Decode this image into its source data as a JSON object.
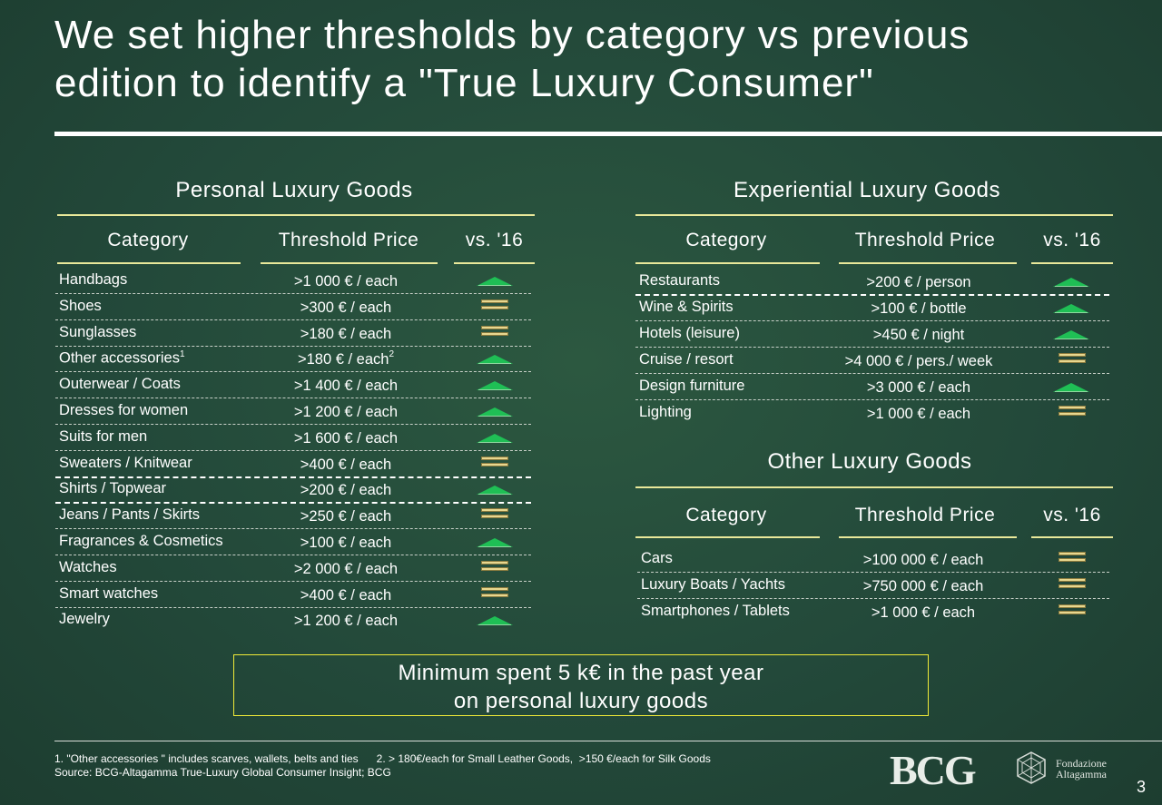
{
  "title": {
    "line1": "We set higher thresholds by category vs previous",
    "line2": "edition to identify a \"True Luxury Consumer\""
  },
  "headers": {
    "category": "Category",
    "threshold": "Threshold Price",
    "vs": "vs. '16"
  },
  "personal": {
    "title": "Personal Luxury Goods",
    "rows": [
      {
        "category": "Handbags",
        "price": ">1 000 € / each",
        "trend": "up"
      },
      {
        "category": "Shoes",
        "price": ">300 € / each",
        "trend": "same"
      },
      {
        "category": "Sunglasses",
        "price": ">180 € / each",
        "trend": "same"
      },
      {
        "category": "Other accessories",
        "sup": "1",
        "price": ">180 € / each",
        "price_sup": "2",
        "trend": "up"
      },
      {
        "category": "Outerwear / Coats",
        "price": ">1 400 € / each",
        "trend": "up"
      },
      {
        "category": "Dresses for women",
        "price": ">1 200 € / each",
        "trend": "up"
      },
      {
        "category": "Suits for men",
        "price": ">1 600 € / each",
        "trend": "up"
      },
      {
        "category": "Sweaters / Knitwear",
        "price": ">400 € / each",
        "trend": "same"
      },
      {
        "category": "Shirts / Topwear",
        "price": ">200 € / each",
        "trend": "up"
      },
      {
        "category": "Jeans / Pants / Skirts",
        "price": ">250 € / each",
        "trend": "same"
      },
      {
        "category": "Fragrances & Cosmetics",
        "price": ">100 € / each",
        "trend": "up"
      },
      {
        "category": "Watches",
        "price": ">2 000 € / each",
        "trend": "same"
      },
      {
        "category": "Smart watches",
        "price": ">400 € / each",
        "trend": "same"
      },
      {
        "category": "Jewelry",
        "price": ">1 200 € / each",
        "trend": "up"
      }
    ]
  },
  "experiential": {
    "title": "Experiential Luxury Goods",
    "rows": [
      {
        "category": "Restaurants",
        "price": ">200 € / person",
        "trend": "up"
      },
      {
        "category": "Wine & Spirits",
        "price": ">100 € / bottle",
        "trend": "up"
      },
      {
        "category": "Hotels (leisure)",
        "price": ">450 € / night",
        "trend": "up"
      },
      {
        "category": "Cruise / resort",
        "price": ">4 000 € / pers./ week",
        "trend": "same"
      },
      {
        "category": "Design furniture",
        "price": ">3 000 € / each",
        "trend": "up"
      },
      {
        "category": "Lighting",
        "price": ">1 000 € / each",
        "trend": "same"
      }
    ]
  },
  "other": {
    "title": "Other Luxury Goods",
    "rows": [
      {
        "category": "Cars",
        "price": ">100 000 € / each",
        "trend": "same"
      },
      {
        "category": "Luxury Boats / Yachts",
        "price": ">750 000 € / each",
        "trend": "same"
      },
      {
        "category": "Smartphones / Tablets",
        "price": ">1 000 € / each",
        "trend": "same"
      }
    ]
  },
  "minimum_box": {
    "line1": "Minimum spent 5 k€ in the past year",
    "line2": "on personal luxury goods"
  },
  "footnotes": {
    "line1": "1. \"Other accessories \" includes scarves, wallets, belts and ties      2. > 180€/each for Small Leather Goods,  >150 €/each for Silk Goods",
    "line2": "Source: BCG-Altagamma True-Luxury Global Consumer Insight; BCG"
  },
  "logos": {
    "bcg": "BCG",
    "fondazione_line1": "Fondazione",
    "fondazione_line2": "Altagamma"
  },
  "page_number": "3",
  "colors": {
    "background": "#23493a",
    "accent_rule": "#e9e89a",
    "box_border": "#f0ea38",
    "up_arrow": "#1fbf55",
    "same_bars": "#e8d78f"
  },
  "icons": {
    "up": "green-up-triangle-icon",
    "same": "equal-bars-icon"
  }
}
